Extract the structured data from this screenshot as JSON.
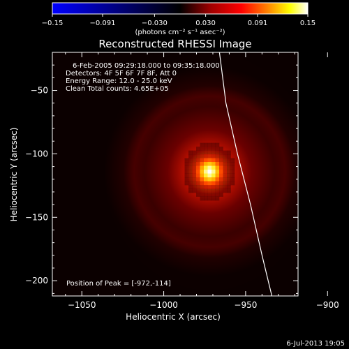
{
  "chart_data": {
    "type": "heatmap",
    "title": "Reconstructed RHESSI Image",
    "xlabel": "Heliocentric X (arcsec)",
    "ylabel": "Heliocentric Y (arcsec)",
    "xlim": [
      -1068,
      -918
    ],
    "ylim": [
      -212,
      -20
    ],
    "xticks": [
      -1050,
      -1000,
      -950,
      -900
    ],
    "yticks": [
      -50,
      -100,
      -150,
      -200
    ],
    "colorbar": {
      "label": "(photons cm⁻² s⁻¹ asec⁻²)",
      "range": [
        -0.15,
        0.15
      ],
      "ticks": [
        -0.15,
        -0.091,
        -0.03,
        0.03,
        0.091,
        0.15
      ],
      "tick_labels": [
        "−0.15",
        "−0.091",
        "−0.030",
        "0.030",
        "0.091",
        "0.15"
      ]
    },
    "info_lines": [
      "6-Feb-2005 09:29:18.000 to 09:35:18.000",
      "Detectors: 4F 5F 6F 7F 8F, Att 0",
      "Energy Range: 12.0 - 25.0 keV",
      "Clean    Total counts: 4.65E+05"
    ],
    "peak": {
      "label": "Position of Peak = [-972,-114]",
      "x": -972,
      "y": -114,
      "value": 0.15
    },
    "limb_curve": {
      "x": [
        -966,
        -962,
        -955,
        -947,
        -940,
        -934
      ],
      "y": [
        -20,
        -60,
        -100,
        -140,
        -180,
        -212
      ]
    },
    "timestamp": "6-Jul-2013 19:05",
    "colors": {
      "background": "#000000",
      "colormap": [
        "#0000ff",
        "#000000",
        "#a00000",
        "#ff0000",
        "#ff8000",
        "#ffff00",
        "#ffffff"
      ]
    }
  }
}
